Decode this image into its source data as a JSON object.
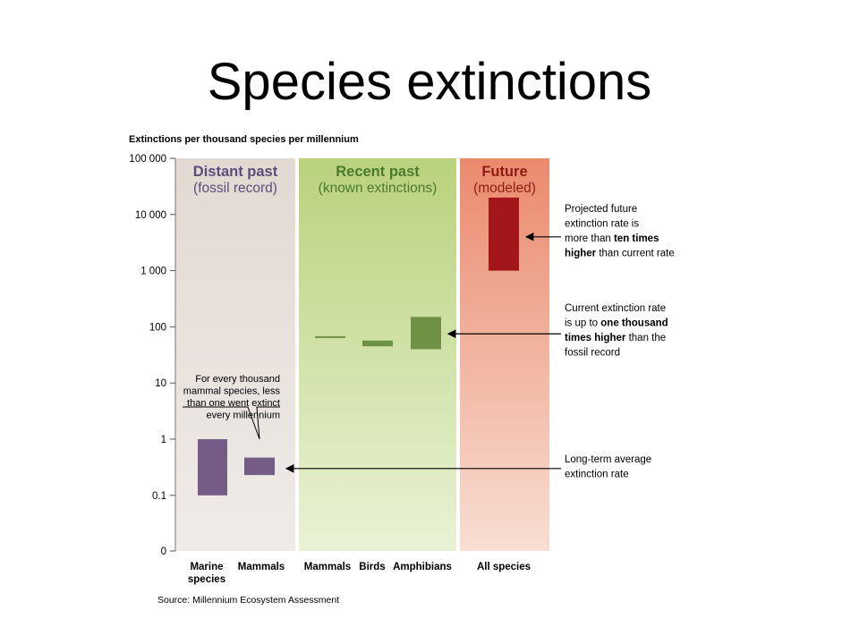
{
  "slide": {
    "title": "Species extinctions"
  },
  "chart_data": {
    "type": "bar",
    "ylabel": "Extinctions per thousand species per millennium",
    "y_scale": "log",
    "ylim": [
      0,
      100000
    ],
    "y_ticks": [
      "100 000",
      "10 000",
      "1 000",
      "100",
      "10",
      "1",
      "0.1",
      "0"
    ],
    "y_tick_values": [
      100000,
      10000,
      1000,
      100,
      10,
      1,
      0.1,
      0
    ],
    "panels": [
      {
        "title": "Distant past",
        "subtitle": "(fossil record)",
        "color": "#e8e0da",
        "title_color": "#5e4b7a"
      },
      {
        "title": "Recent past",
        "subtitle": "(known extinctions)",
        "color": "#c4da8e",
        "title_color": "#4b7a2e"
      },
      {
        "title": "Future",
        "subtitle": "(modeled)",
        "color": "#ee9a80",
        "title_color": "#8e1c14"
      }
    ],
    "categories": [
      {
        "label_lines": [
          "Marine",
          "species"
        ],
        "panel": 0,
        "low": 0.1,
        "high": 1,
        "color": "#735c85"
      },
      {
        "label_lines": [
          "Mammals"
        ],
        "panel": 0,
        "low": 0.23,
        "high": 0.47,
        "color": "#735c85"
      },
      {
        "label_lines": [
          "Mammals"
        ],
        "panel": 1,
        "low": 65,
        "high": 68,
        "color": "#6f9143"
      },
      {
        "label_lines": [
          "Birds"
        ],
        "panel": 1,
        "low": 45,
        "high": 57,
        "color": "#6f9143"
      },
      {
        "label_lines": [
          "Amphibians"
        ],
        "panel": 1,
        "low": 40,
        "high": 150,
        "color": "#6f9143"
      },
      {
        "label_lines": [
          "All species"
        ],
        "panel": 2,
        "low": 1000,
        "high": 20000,
        "color": "#a3171b"
      }
    ],
    "annotations": [
      {
        "lines": [
          [
            {
              "t": "Projected future",
              "b": false
            }
          ],
          [
            {
              "t": "extinction rate is",
              "b": false
            }
          ],
          [
            {
              "t": "more than ",
              "b": false
            },
            {
              "t": "ten times",
              "b": true
            }
          ],
          [
            {
              "t": "higher",
              "b": true
            },
            {
              "t": " than current rate",
              "b": false
            }
          ]
        ],
        "arrow_to_value": 4000
      },
      {
        "lines": [
          [
            {
              "t": "Current extinction rate",
              "b": false
            }
          ],
          [
            {
              "t": "is up to ",
              "b": false
            },
            {
              "t": "one thousand",
              "b": true
            }
          ],
          [
            {
              "t": "times higher",
              "b": true
            },
            {
              "t": " than the",
              "b": false
            }
          ],
          [
            {
              "t": "fossil record",
              "b": false
            }
          ]
        ],
        "arrow_to_value": 75
      },
      {
        "lines": [
          [
            {
              "t": "Long-term average",
              "b": false
            }
          ],
          [
            {
              "t": "extinction rate",
              "b": false
            }
          ]
        ],
        "arrow_to_value": 0.3
      }
    ],
    "callout": {
      "lines": [
        "For every thousand",
        "mammal species, less",
        "than one went extinct",
        "every millennium"
      ]
    },
    "source": "Source: Millennium Ecosystem Assessment"
  }
}
